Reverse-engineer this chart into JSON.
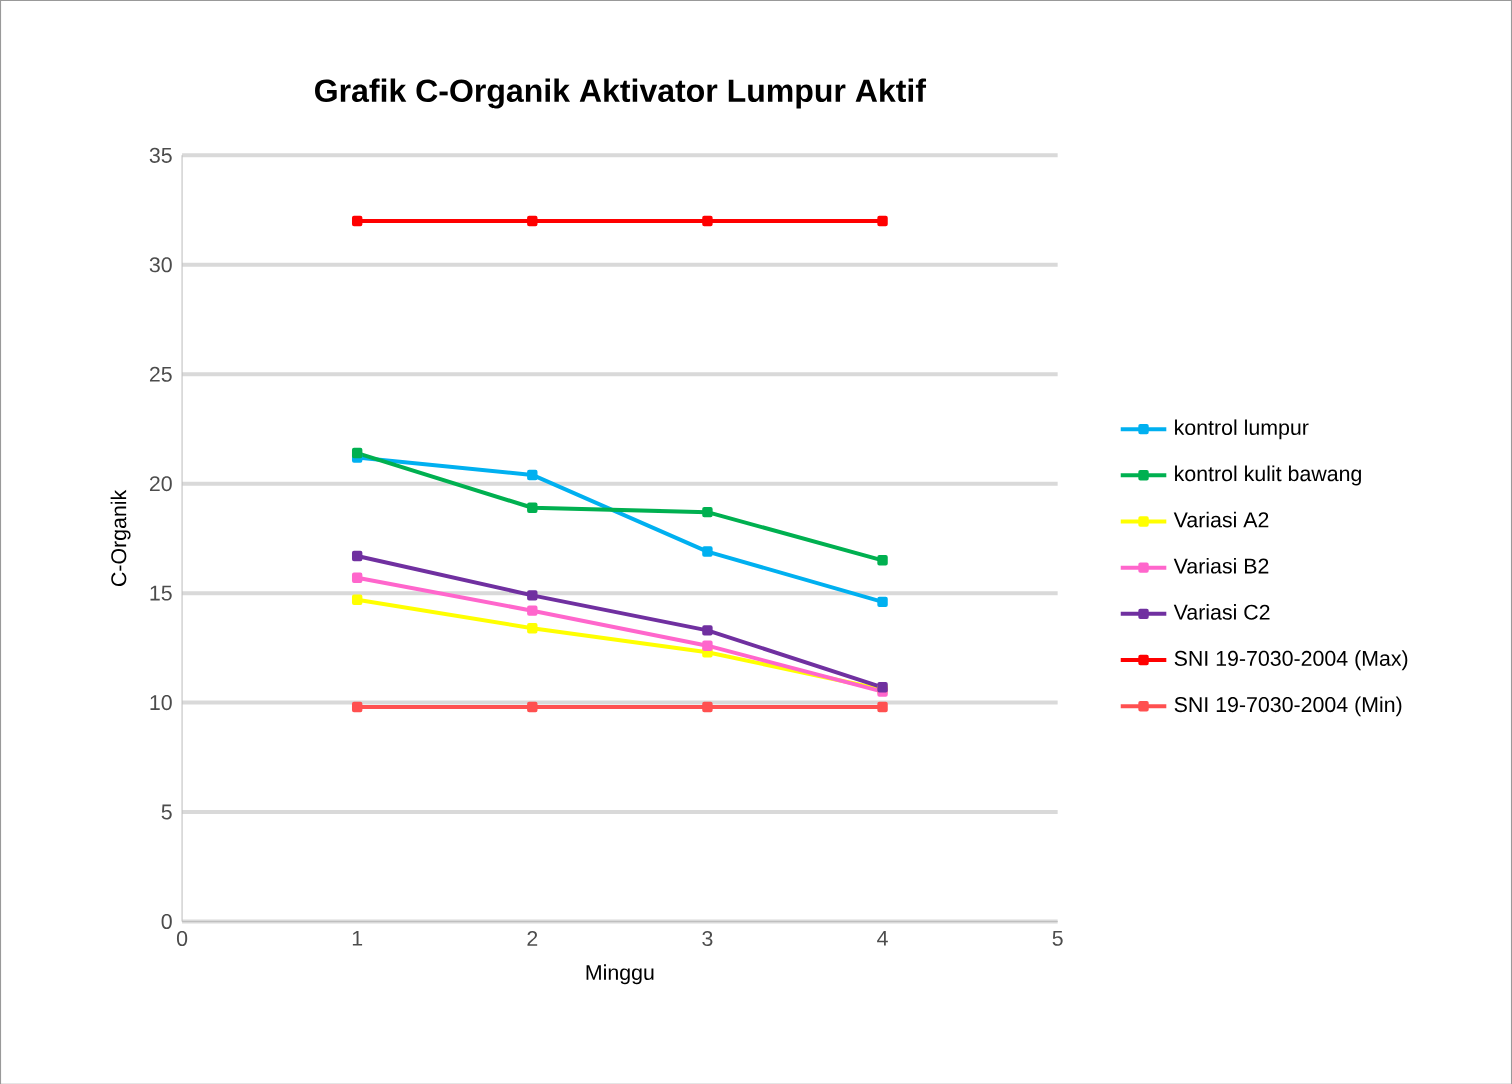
{
  "chart_data": {
    "type": "line",
    "title": "Grafik C-Organik Aktivator Lumpur Aktif",
    "xlabel": "Minggu",
    "ylabel": "C-Organik",
    "x": [
      1,
      2,
      3,
      4
    ],
    "xlim": [
      0,
      5
    ],
    "xticks": [
      0,
      1,
      2,
      3,
      4,
      5
    ],
    "ylim": [
      0,
      35
    ],
    "yticks": [
      0,
      5,
      10,
      15,
      20,
      25,
      30,
      35
    ],
    "grid": "y",
    "legend": "right",
    "marker": "square",
    "line_style": "solid",
    "series": [
      {
        "name": "kontrol lumpur",
        "color": "#00b0f0",
        "values": [
          21.2,
          20.4,
          16.9,
          14.6
        ]
      },
      {
        "name": "kontrol kulit bawang",
        "color": "#00b050",
        "values": [
          21.4,
          18.9,
          18.7,
          16.5
        ]
      },
      {
        "name": "Variasi A2",
        "color": "#ffff00",
        "values": [
          14.7,
          13.4,
          12.3,
          10.6
        ]
      },
      {
        "name": "Variasi B2",
        "color": "#ff66cc",
        "values": [
          15.7,
          14.2,
          12.6,
          10.5
        ]
      },
      {
        "name": "Variasi C2",
        "color": "#7030a0",
        "values": [
          16.7,
          14.9,
          13.3,
          10.7
        ]
      },
      {
        "name": "SNI 19-7030-2004 (Max)",
        "color": "#ff0000",
        "values": [
          32,
          32,
          32,
          32
        ]
      },
      {
        "name": "SNI 19-7030-2004 (Min)",
        "color": "#ff5050",
        "values": [
          9.8,
          9.8,
          9.8,
          9.8
        ]
      }
    ]
  }
}
